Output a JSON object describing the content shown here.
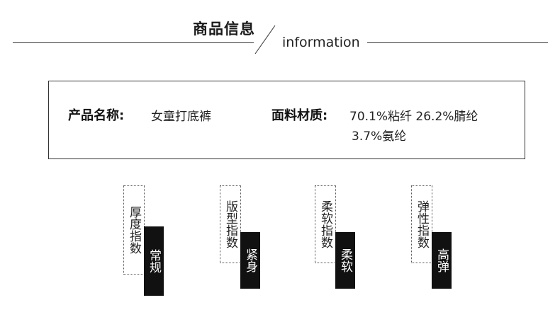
{
  "header": {
    "title": "商品信息",
    "subtitle": "information"
  },
  "product": {
    "name_label": "产品名称:",
    "name_value": "女童打底裤",
    "material_label": "面料材质:",
    "material_line1": "70.1%粘纤  26.2%腈纶",
    "material_line2": "3.7%氨纶"
  },
  "indices": [
    {
      "label": "厚度指数",
      "value": "常规"
    },
    {
      "label": "版型指数",
      "value": "紧身"
    },
    {
      "label": "柔软指数",
      "value": "柔软"
    },
    {
      "label": "弹性指数",
      "value": "高弹"
    }
  ]
}
